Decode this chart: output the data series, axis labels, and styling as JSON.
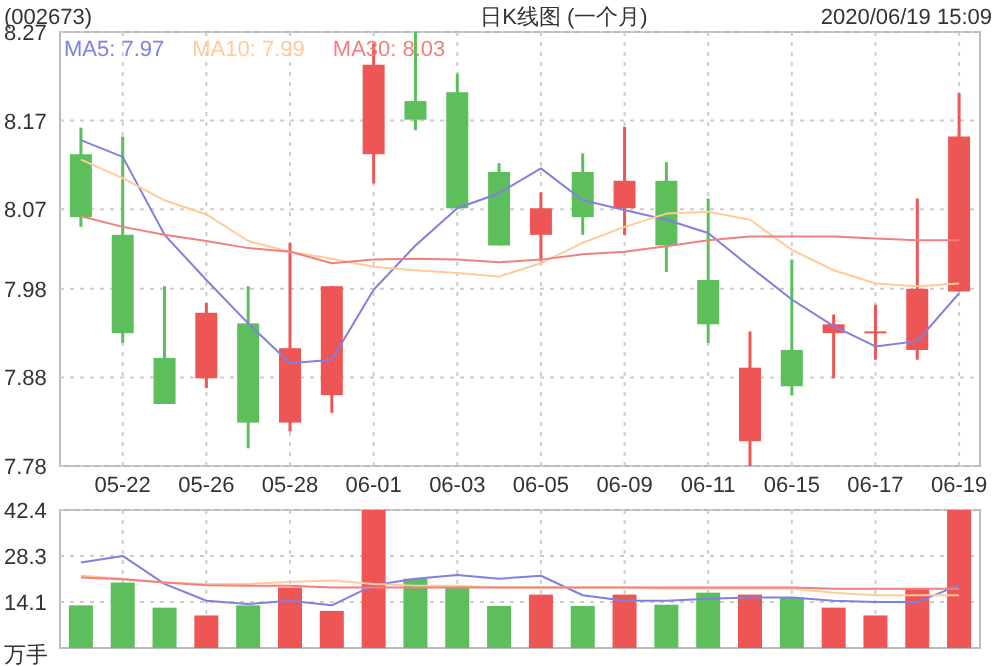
{
  "chart_data": [
    {
      "type": "candlestick",
      "title": "日K线图 (一个月)",
      "subtitle": "(002673)",
      "annotations": [
        "2020/06/19 15:09"
      ],
      "categories": [
        null,
        "05-22",
        null,
        "05-26",
        null,
        "05-28",
        null,
        "06-01",
        null,
        "06-03",
        null,
        "06-05",
        null,
        "06-09",
        null,
        "06-11",
        null,
        "06-15",
        null,
        "06-17",
        null,
        "06-19"
      ],
      "ohlc": [
        [
          8.132,
          8.162,
          8.05,
          8.061
        ],
        [
          8.041,
          8.152,
          7.919,
          7.93
        ],
        [
          7.902,
          7.983,
          7.85,
          7.85
        ],
        [
          7.879,
          7.964,
          7.868,
          7.953
        ],
        [
          7.941,
          7.983,
          7.8,
          7.829
        ],
        [
          7.829,
          8.032,
          7.819,
          7.913
        ],
        [
          7.86,
          7.983,
          7.84,
          7.983
        ],
        [
          8.132,
          8.257,
          8.099,
          8.233
        ],
        [
          8.192,
          8.27,
          8.159,
          8.171
        ],
        [
          8.202,
          8.223,
          8.071,
          8.071
        ],
        [
          8.112,
          8.122,
          8.029,
          8.029
        ],
        [
          8.041,
          8.089,
          8.011,
          8.071
        ],
        [
          8.112,
          8.133,
          8.041,
          8.061
        ],
        [
          8.071,
          8.163,
          8.041,
          8.102
        ],
        [
          8.102,
          8.123,
          7.999,
          8.029
        ],
        [
          7.99,
          8.082,
          7.919,
          7.94
        ],
        [
          7.808,
          7.932,
          7.78,
          7.891
        ],
        [
          7.911,
          8.013,
          7.86,
          7.87
        ],
        [
          7.93,
          7.951,
          7.879,
          7.94
        ],
        [
          7.932,
          7.962,
          7.9,
          7.932
        ],
        [
          7.911,
          8.082,
          7.9,
          7.98
        ],
        [
          7.977,
          8.201,
          7.977,
          8.152
        ]
      ],
      "colors": [
        "#5cbf5c",
        "#5cbf5c",
        "#5cbf5c",
        "#ee5555",
        "#5cbf5c",
        "#ee5555",
        "#ee5555",
        "#ee5555",
        "#5cbf5c",
        "#5cbf5c",
        "#5cbf5c",
        "#ee5555",
        "#5cbf5c",
        "#ee5555",
        "#5cbf5c",
        "#5cbf5c",
        "#ee5555",
        "#5cbf5c",
        "#ee5555",
        "#ee5555",
        "#ee5555",
        "#ee5555"
      ],
      "series": [
        {
          "type": "line",
          "name": "MA5: 7.97",
          "color": "#8080e0",
          "values": [
            8.148,
            8.129,
            8.041,
            7.99,
            7.941,
            7.896,
            7.9,
            7.979,
            8.029,
            8.071,
            8.088,
            8.116,
            8.08,
            8.069,
            8.058,
            8.043,
            8.005,
            7.968,
            7.938,
            7.915,
            7.921,
            7.975
          ]
        },
        {
          "type": "line",
          "name": "MA10: 7.99",
          "color": "#ffcc99",
          "values": [
            8.126,
            8.105,
            8.08,
            8.064,
            8.034,
            8.022,
            8.014,
            8.005,
            8.001,
            7.998,
            7.994,
            8.009,
            8.032,
            8.05,
            8.065,
            8.067,
            8.058,
            8.024,
            8.001,
            7.986,
            7.983,
            7.986
          ]
        },
        {
          "type": "line",
          "name": "MA30: 8.03",
          "color": "#f08080",
          "values": [
            8.062,
            8.05,
            8.041,
            8.034,
            8.026,
            8.022,
            8.009,
            8.013,
            8.014,
            8.013,
            8.01,
            8.013,
            8.019,
            8.022,
            8.028,
            8.035,
            8.039,
            8.039,
            8.039,
            8.037,
            8.035,
            8.035
          ]
        }
      ],
      "ylim": [
        7.78,
        8.27
      ],
      "yticks": [
        8.27,
        8.17,
        8.07,
        7.98,
        7.88,
        7.78
      ],
      "grid": true,
      "legend": "top left"
    },
    {
      "type": "bar",
      "ylabel": "万手",
      "categories": [
        null,
        null,
        null,
        null,
        null,
        null,
        null,
        null,
        null,
        null,
        null,
        null,
        null,
        null,
        null,
        null,
        null,
        null,
        null,
        null,
        null,
        null
      ],
      "series": [
        {
          "type": "bar",
          "colors": [
            "#5cbf5c",
            "#5cbf5c",
            "#5cbf5c",
            "#ee5555",
            "#5cbf5c",
            "#ee5555",
            "#ee5555",
            "#ee5555",
            "#5cbf5c",
            "#5cbf5c",
            "#5cbf5c",
            "#ee5555",
            "#5cbf5c",
            "#ee5555",
            "#5cbf5c",
            "#5cbf5c",
            "#ee5555",
            "#5cbf5c",
            "#ee5555",
            "#ee5555",
            "#ee5555",
            "#ee5555"
          ],
          "values": [
            13.1,
            20.1,
            12.4,
            10.0,
            13.1,
            18.6,
            11.4,
            42.4,
            21.3,
            18.6,
            12.9,
            16.4,
            12.9,
            16.4,
            13.3,
            17.0,
            16.4,
            15.5,
            12.4,
            10.0,
            18.2,
            42.4
          ]
        },
        {
          "type": "line",
          "color": "#8080e0",
          "values": [
            26.3,
            28.3,
            19.7,
            14.5,
            13.5,
            14.5,
            13.1,
            19.3,
            21.3,
            22.4,
            21.3,
            22.2,
            16.2,
            14.5,
            14.5,
            15.1,
            15.5,
            15.5,
            14.5,
            14.1,
            14.1,
            19.3
          ]
        },
        {
          "type": "line",
          "color": "#ffcc99",
          "values": [
            22.2,
            21.3,
            20.1,
            19.7,
            19.7,
            20.3,
            20.7,
            19.7,
            19.1,
            19.1,
            18.6,
            18.6,
            18.6,
            18.6,
            18.2,
            18.2,
            18.2,
            18.2,
            17.0,
            16.2,
            16.2,
            16.2
          ]
        },
        {
          "type": "line",
          "color": "#f08080",
          "values": [
            21.7,
            21.1,
            20.1,
            19.3,
            19.1,
            19.1,
            18.6,
            18.6,
            18.6,
            18.6,
            18.6,
            18.6,
            18.6,
            18.6,
            18.6,
            18.6,
            18.6,
            18.6,
            18.2,
            18.2,
            18.2,
            18.2
          ]
        }
      ],
      "ylim": [
        0,
        42.4
      ],
      "yticks": [
        14.1,
        28.3,
        42.4
      ],
      "tick_labels": "y",
      "grid": true
    }
  ]
}
